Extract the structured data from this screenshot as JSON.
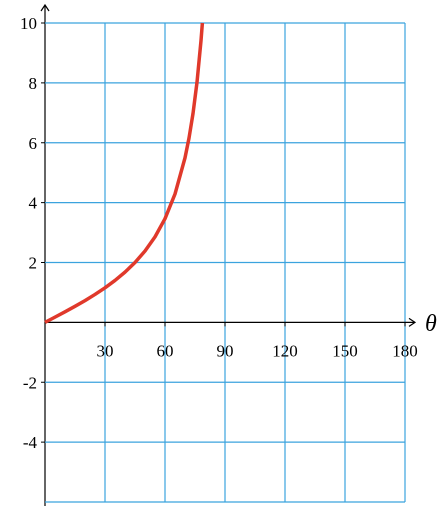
{
  "chart_data": {
    "type": "line",
    "x_label": "θ",
    "x": [
      0,
      5,
      10,
      15,
      20,
      25,
      30,
      35,
      40,
      45,
      50,
      55,
      60,
      65,
      70,
      72,
      74,
      76,
      78,
      78.69
    ],
    "series": [
      {
        "color": "#e0392b",
        "values": [
          0,
          0.175,
          0.353,
          0.536,
          0.728,
          0.933,
          1.155,
          1.4,
          1.678,
          2,
          2.384,
          2.856,
          3.464,
          4.289,
          5.495,
          6.155,
          6.975,
          8.021,
          9.409,
          10
        ]
      }
    ],
    "xlim": [
      0,
      180
    ],
    "xticks": [
      30,
      60,
      90,
      120,
      150,
      180
    ],
    "ylim": [
      -6,
      10
    ],
    "yticks": [
      -4,
      -2,
      2,
      4,
      6,
      8,
      10
    ],
    "grid": true,
    "grid_color": "#3ba3de"
  }
}
